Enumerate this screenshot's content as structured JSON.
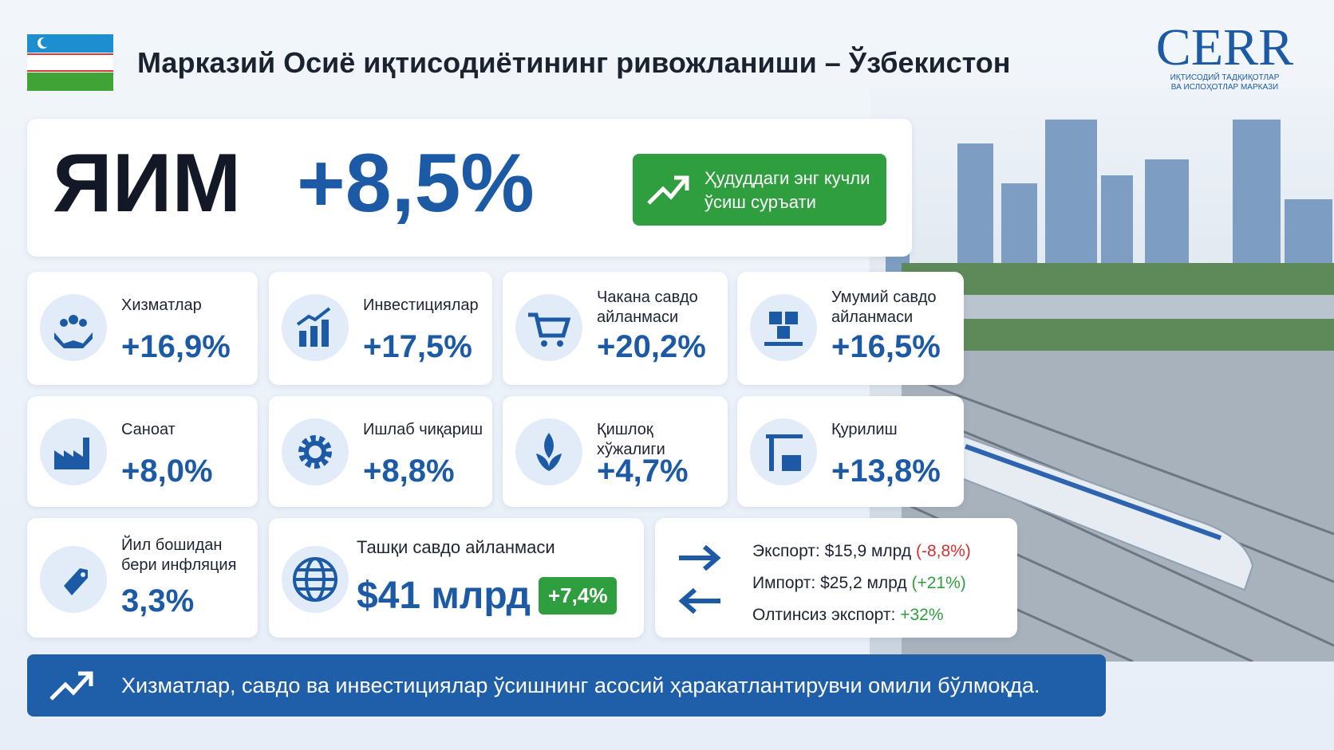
{
  "header": {
    "title": "Марказий Осиё иқтисодиётининг ривожланиши – Ўзбекистон"
  },
  "logo": {
    "name": "CERR",
    "subtitle": [
      "ИҚТИСОДИЙ ТАДҚИҚОТЛАР",
      "ВА ИСЛОҲОТЛАР МАРКАЗИ"
    ]
  },
  "gdp": {
    "label": "ЯИМ",
    "value": "+8,5%",
    "badge": "Ҳудуддаги энг кучли ўсиш суръати"
  },
  "cards": [
    {
      "label": "Хизматлар",
      "value": "+16,9%"
    },
    {
      "label": "Инвестициялар",
      "value": "+17,5%"
    },
    {
      "label": "Чакана савдо айланмаси",
      "value": "+20,2%"
    },
    {
      "label": "Умумий савдо айланмаси",
      "value": "+16,5%"
    },
    {
      "label": "Саноат",
      "value": "+8,0%"
    },
    {
      "label": "Ишлаб чиқариш",
      "value": "+8,8%"
    },
    {
      "label": "Қишлоқ хўжалиги",
      "value": "+4,7%"
    },
    {
      "label": "Қурилиш",
      "value": "+13,8%"
    }
  ],
  "inflation": {
    "label": "Йил бошидан бери инфляция",
    "value": "3,3%"
  },
  "trade": {
    "label": "Ташқи савдо айланмаси",
    "value": "$41 млрд",
    "change": "+7,4%"
  },
  "trade_details": {
    "export": "Экспорт: $15,9 млрд",
    "export_change": "(-8,8%)",
    "import": "Импорт: $25,2 млрд",
    "import_change": "(+21%)",
    "gold": "Олтинсиз экспорт:",
    "gold_change": "+32%"
  },
  "footer": {
    "text": "Хизматлар, савдо ва инвестициялар ўсишнинг асосий ҳаракатлантирувчи омили бўлмоқда."
  }
}
